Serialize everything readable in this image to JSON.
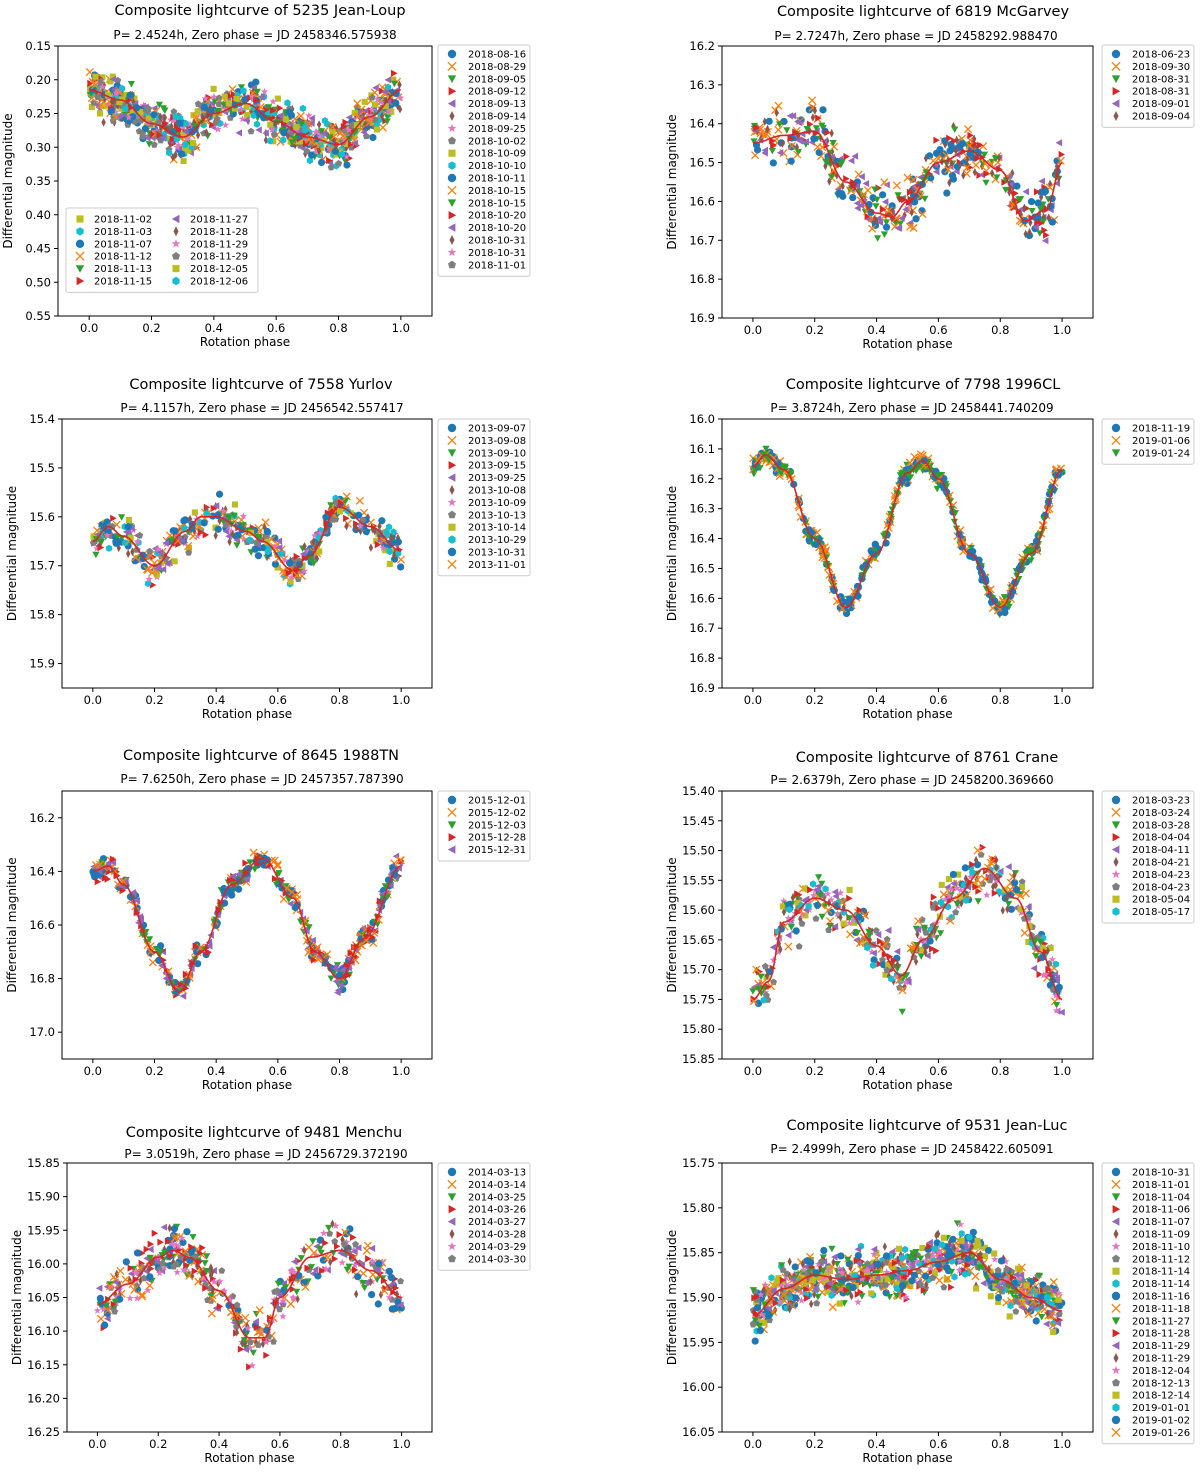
{
  "chart_data": [
    {
      "type": "scatter",
      "title": "Composite lightcurve of 5235 Jean-Loup",
      "subtitle": "P=  2.4524h, Zero phase = JD 2458346.575938",
      "xlabel": "Rotation phase",
      "ylabel": "Differential magnitude",
      "xlim": [
        -0.1,
        1.1
      ],
      "ylim": [
        0.55,
        0.15
      ],
      "y_inverted": true,
      "xticks": [
        "0.0",
        "0.2",
        "0.4",
        "0.6",
        "0.8",
        "1.0"
      ],
      "yticks": [
        "0.15",
        "0.20",
        "0.25",
        "0.30",
        "0.35",
        "0.40",
        "0.45",
        "0.50",
        "0.55"
      ],
      "fit_curve": {
        "color": "#d62728",
        "x": [
          0,
          0.1,
          0.2,
          0.3,
          0.4,
          0.5,
          0.6,
          0.7,
          0.8,
          0.9,
          1.0
        ],
        "y": [
          0.215,
          0.23,
          0.265,
          0.285,
          0.25,
          0.235,
          0.262,
          0.285,
          0.296,
          0.255,
          0.215
        ]
      },
      "legend_placement": "outside-right + inside-lower-left",
      "sessions": [
        "2018-08-16",
        "2018-08-29",
        "2018-09-05",
        "2018-09-12",
        "2018-09-13",
        "2018-09-14",
        "2018-09-25",
        "2018-10-02",
        "2018-10-09",
        "2018-10-10",
        "2018-10-11",
        "2018-10-15",
        "2018-10-15",
        "2018-10-20",
        "2018-10-20",
        "2018-10-31",
        "2018-10-31",
        "2018-11-01",
        "2018-11-02",
        "2018-11-03",
        "2018-11-07",
        "2018-11-12",
        "2018-11-13",
        "2018-11-15",
        "2018-11-27",
        "2018-11-28",
        "2018-11-29",
        "2018-11-29",
        "2018-12-05",
        "2018-12-06"
      ],
      "legend_outside_count": 18,
      "legend_inside_columns": [
        6,
        6
      ],
      "scatter_amplitude": 0.022
    },
    {
      "type": "scatter",
      "title": "Composite lightcurve of 6819 McGarvey",
      "subtitle": "P=  2.7247h, Zero phase = JD 2458292.988470",
      "xlabel": "Rotation phase",
      "ylabel": "Differential magnitude",
      "xlim": [
        -0.1,
        1.1
      ],
      "ylim": [
        16.9,
        16.2
      ],
      "y_inverted": true,
      "xticks": [
        "0.0",
        "0.2",
        "0.4",
        "0.6",
        "0.8",
        "1.0"
      ],
      "yticks": [
        "16.2",
        "16.3",
        "16.4",
        "16.5",
        "16.6",
        "16.7",
        "16.8",
        "16.9"
      ],
      "fit_curve": {
        "color": "#d62728",
        "x": [
          0,
          0.1,
          0.2,
          0.3,
          0.4,
          0.45,
          0.5,
          0.6,
          0.7,
          0.8,
          0.88,
          0.95,
          1.0
        ],
        "y": [
          16.45,
          16.43,
          16.42,
          16.55,
          16.63,
          16.64,
          16.6,
          16.5,
          16.47,
          16.52,
          16.65,
          16.62,
          16.5
        ]
      },
      "legend_placement": "outside-right",
      "sessions": [
        "2018-06-23",
        "2018-09-30",
        "2018-08-31",
        "2018-08-31",
        "2018-09-01",
        "2018-09-04"
      ],
      "legend_outside_count": 6,
      "scatter_amplitude": 0.05
    },
    {
      "type": "scatter",
      "title": "Composite lightcurve of 7558 Yurlov",
      "subtitle": "P=  4.1157h, Zero phase = JD 2456542.557417",
      "xlabel": "Rotation phase",
      "ylabel": "Differential magnitude",
      "xlim": [
        -0.1,
        1.1
      ],
      "ylim": [
        15.95,
        15.4
      ],
      "y_inverted": true,
      "xticks": [
        "0.0",
        "0.2",
        "0.4",
        "0.6",
        "0.8",
        "1.0"
      ],
      "yticks": [
        "15.4",
        "15.5",
        "15.6",
        "15.7",
        "15.8",
        "15.9"
      ],
      "fit_curve": {
        "color": "#d62728",
        "x": [
          0,
          0.05,
          0.1,
          0.2,
          0.3,
          0.35,
          0.4,
          0.5,
          0.55,
          0.65,
          0.7,
          0.8,
          0.9,
          1.0
        ],
        "y": [
          15.65,
          15.62,
          15.64,
          15.7,
          15.63,
          15.6,
          15.6,
          15.63,
          15.65,
          15.71,
          15.68,
          15.58,
          15.62,
          15.67
        ]
      },
      "legend_placement": "outside-right",
      "sessions": [
        "2013-09-07",
        "2013-09-08",
        "2013-09-10",
        "2013-09-15",
        "2013-09-25",
        "2013-10-08",
        "2013-10-09",
        "2013-10-13",
        "2013-10-14",
        "2013-10-29",
        "2013-10-31",
        "2013-11-01"
      ],
      "legend_outside_count": 12,
      "scatter_amplitude": 0.025
    },
    {
      "type": "scatter",
      "title": "Composite lightcurve of 7798 1996CL",
      "subtitle": "P=  3.8724h, Zero phase = JD 2458441.740209",
      "xlabel": "Rotation phase",
      "ylabel": "Differential magnitude",
      "xlim": [
        -0.1,
        1.1
      ],
      "ylim": [
        16.9,
        16.0
      ],
      "y_inverted": true,
      "xticks": [
        "0.0",
        "0.2",
        "0.4",
        "0.6",
        "0.8",
        "1.0"
      ],
      "yticks": [
        "16.0",
        "16.1",
        "16.2",
        "16.3",
        "16.4",
        "16.5",
        "16.6",
        "16.7",
        "16.8",
        "16.9"
      ],
      "fit_curve": {
        "color": "#d62728",
        "x": [
          0,
          0.04,
          0.1,
          0.2,
          0.3,
          0.4,
          0.5,
          0.55,
          0.6,
          0.7,
          0.8,
          0.9,
          1.0
        ],
        "y": [
          16.16,
          16.12,
          16.17,
          16.4,
          16.63,
          16.45,
          16.18,
          16.14,
          16.2,
          16.45,
          16.63,
          16.45,
          16.17
        ]
      },
      "legend_placement": "outside-right",
      "sessions": [
        "2018-11-19",
        "2019-01-06",
        "2019-01-24"
      ],
      "legend_outside_count": 3,
      "scatter_amplitude": 0.02
    },
    {
      "type": "scatter",
      "title": "Composite lightcurve of 8645 1988TN",
      "subtitle": "P=  7.6250h, Zero phase = JD 2457357.787390",
      "xlabel": "Rotation phase",
      "ylabel": "Differential magnitude",
      "xlim": [
        -0.1,
        1.1
      ],
      "ylim": [
        17.1,
        16.1
      ],
      "y_inverted": true,
      "xticks": [
        "0.0",
        "0.2",
        "0.4",
        "0.6",
        "0.8",
        "1.0"
      ],
      "yticks": [
        "16.2",
        "16.4",
        "16.6",
        "16.8",
        "17.0"
      ],
      "fit_curve": {
        "color": "#d62728",
        "x": [
          0,
          0.05,
          0.1,
          0.2,
          0.28,
          0.35,
          0.45,
          0.55,
          0.65,
          0.72,
          0.8,
          0.88,
          1.0
        ],
        "y": [
          16.4,
          16.38,
          16.45,
          16.7,
          16.85,
          16.7,
          16.45,
          16.35,
          16.5,
          16.7,
          16.8,
          16.65,
          16.38
        ]
      },
      "legend_placement": "outside-right",
      "sessions": [
        "2015-12-01",
        "2015-12-02",
        "2015-12-03",
        "2015-12-28",
        "2015-12-31"
      ],
      "legend_outside_count": 5,
      "scatter_amplitude": 0.03
    },
    {
      "type": "scatter",
      "title": "Composite lightcurve of 8761 Crane",
      "subtitle": "P=  2.6379h, Zero phase = JD 2458200.369660",
      "xlabel": "Rotation phase",
      "ylabel": "Differential magnitude",
      "xlim": [
        -0.1,
        1.1
      ],
      "ylim": [
        15.85,
        15.4
      ],
      "y_inverted": true,
      "xticks": [
        "0.0",
        "0.2",
        "0.4",
        "0.6",
        "0.8",
        "1.0"
      ],
      "yticks": [
        "15.40",
        "15.45",
        "15.50",
        "15.55",
        "15.60",
        "15.65",
        "15.70",
        "15.75",
        "15.80",
        "15.85"
      ],
      "fit_curve": {
        "color": "#d62728",
        "x": [
          0,
          0.05,
          0.1,
          0.2,
          0.3,
          0.4,
          0.48,
          0.55,
          0.65,
          0.75,
          0.85,
          0.93,
          1.0
        ],
        "y": [
          15.75,
          15.72,
          15.62,
          15.58,
          15.6,
          15.66,
          15.71,
          15.65,
          15.58,
          15.53,
          15.58,
          15.67,
          15.75
        ]
      },
      "legend_placement": "outside-right",
      "sessions": [
        "2018-03-23",
        "2018-03-24",
        "2018-03-28",
        "2018-04-04",
        "2018-04-11",
        "2018-04-21",
        "2018-04-23",
        "2018-04-23",
        "2018-05-04",
        "2018-05-17"
      ],
      "legend_outside_count": 10,
      "scatter_amplitude": 0.03
    },
    {
      "type": "scatter",
      "title": "Composite lightcurve of 9481 Menchu",
      "subtitle": "P=  3.0519h, Zero phase = JD 2456729.372190",
      "xlabel": "Rotation phase",
      "ylabel": "Differential magnitude",
      "xlim": [
        -0.1,
        1.1
      ],
      "ylim": [
        16.25,
        15.85
      ],
      "y_inverted": true,
      "xticks": [
        "0.0",
        "0.2",
        "0.4",
        "0.6",
        "0.8",
        "1.0"
      ],
      "yticks": [
        "15.85",
        "15.90",
        "15.95",
        "16.00",
        "16.05",
        "16.10",
        "16.15",
        "16.20",
        "16.25"
      ],
      "fit_curve": {
        "color": "#d62728",
        "x": [
          0,
          0.1,
          0.2,
          0.25,
          0.3,
          0.4,
          0.5,
          0.55,
          0.6,
          0.7,
          0.8,
          0.9,
          1.0
        ],
        "y": [
          16.06,
          16.03,
          15.99,
          15.98,
          15.99,
          16.04,
          16.11,
          16.11,
          16.05,
          15.99,
          15.98,
          16.01,
          16.05
        ]
      },
      "legend_placement": "outside-right",
      "sessions": [
        "2014-03-13",
        "2014-03-14",
        "2014-03-25",
        "2014-03-26",
        "2014-03-27",
        "2014-03-28",
        "2014-03-29",
        "2014-03-30"
      ],
      "legend_outside_count": 8,
      "scatter_amplitude": 0.025
    },
    {
      "type": "scatter",
      "title": "Composite lightcurve of 9531 Jean-Luc",
      "subtitle": "P=  2.4999h, Zero phase = JD 2458422.605091",
      "xlabel": "Rotation phase",
      "ylabel": "Differential magnitude",
      "xlim": [
        -0.1,
        1.1
      ],
      "ylim": [
        16.05,
        15.75
      ],
      "y_inverted": true,
      "xticks": [
        "0.0",
        "0.2",
        "0.4",
        "0.6",
        "0.8",
        "1.0"
      ],
      "yticks": [
        "15.75",
        "15.80",
        "15.85",
        "15.90",
        "15.95",
        "16.00",
        "16.05"
      ],
      "fit_curve": {
        "color": "#d62728",
        "x": [
          0,
          0.1,
          0.2,
          0.3,
          0.4,
          0.5,
          0.6,
          0.7,
          0.8,
          0.9,
          1.0
        ],
        "y": [
          15.92,
          15.89,
          15.875,
          15.88,
          15.875,
          15.87,
          15.86,
          15.85,
          15.88,
          15.9,
          15.915
        ]
      },
      "legend_placement": "outside-right",
      "sessions": [
        "2018-10-31",
        "2018-11-01",
        "2018-11-04",
        "2018-11-06",
        "2018-11-07",
        "2018-11-09",
        "2018-11-10",
        "2018-11-12",
        "2018-11-14",
        "2018-11-14",
        "2018-11-16",
        "2018-11-18",
        "2018-11-27",
        "2018-11-28",
        "2018-11-29",
        "2018-11-29",
        "2018-12-04",
        "2018-12-13",
        "2018-12-14",
        "2019-01-01",
        "2019-01-02",
        "2019-01-26"
      ],
      "legend_outside_count": 22,
      "scatter_amplitude": 0.02
    }
  ],
  "style": {
    "series_colors": [
      "#1f77b4",
      "#ff7f0e",
      "#2ca02c",
      "#d62728",
      "#9467bd",
      "#8c564b",
      "#e377c2",
      "#7f7f7f",
      "#bcbd22",
      "#17becf"
    ],
    "marker_cycle": [
      "circle",
      "x",
      "triangle-down",
      "triangle-right",
      "triangle-left",
      "thin-diamond",
      "star",
      "pentagon",
      "square",
      "hexagon"
    ],
    "fit_color": "#d62728",
    "grid": false
  }
}
